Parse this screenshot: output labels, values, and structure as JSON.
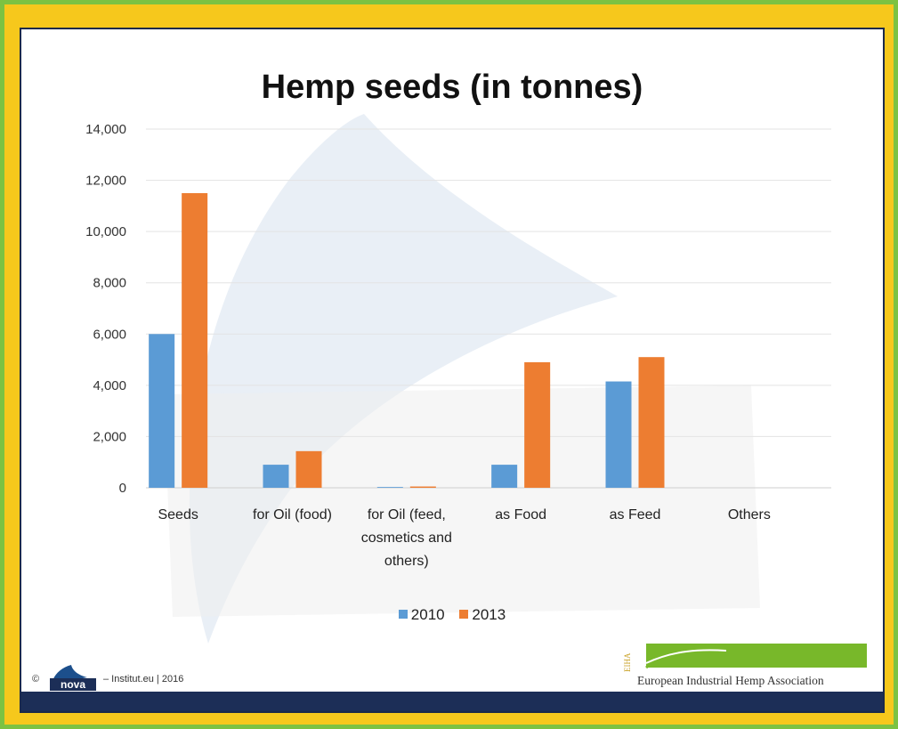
{
  "chart_data": {
    "type": "bar",
    "title": "Hemp seeds (in tonnes)",
    "categories": [
      [
        "Seeds"
      ],
      [
        "for Oil (food)"
      ],
      [
        "for Oil (feed,",
        "cosmetics and",
        "others)"
      ],
      [
        "as Food"
      ],
      [
        "as Feed"
      ],
      [
        "Others"
      ]
    ],
    "series": [
      {
        "name": "2010",
        "color": "#5b9bd5",
        "values": [
          6000,
          900,
          30,
          900,
          4150,
          0
        ]
      },
      {
        "name": "2013",
        "color": "#ed7d31",
        "values": [
          11500,
          1430,
          50,
          4900,
          5100,
          0
        ]
      }
    ],
    "ylim": [
      0,
      14000
    ],
    "yticks": [
      "0",
      "2,000",
      "4,000",
      "6,000",
      "8,000",
      "10,000",
      "12,000",
      "14,000"
    ],
    "ytick_values": [
      0,
      2000,
      4000,
      6000,
      8000,
      10000,
      12000,
      14000
    ],
    "grid": true,
    "legend": "bottom"
  },
  "footer": {
    "copyright": "©",
    "nova_logo_text": "nova",
    "credit": "– Institut.eu | 2016",
    "eiha_mark": "EIHA",
    "eiha_name": "European Industrial Hemp Association"
  },
  "colors": {
    "outer_border": "#7cc242",
    "frame": "#f6c81c",
    "footer_bar": "#1c2e57",
    "eiha_green": "#78b82a"
  }
}
